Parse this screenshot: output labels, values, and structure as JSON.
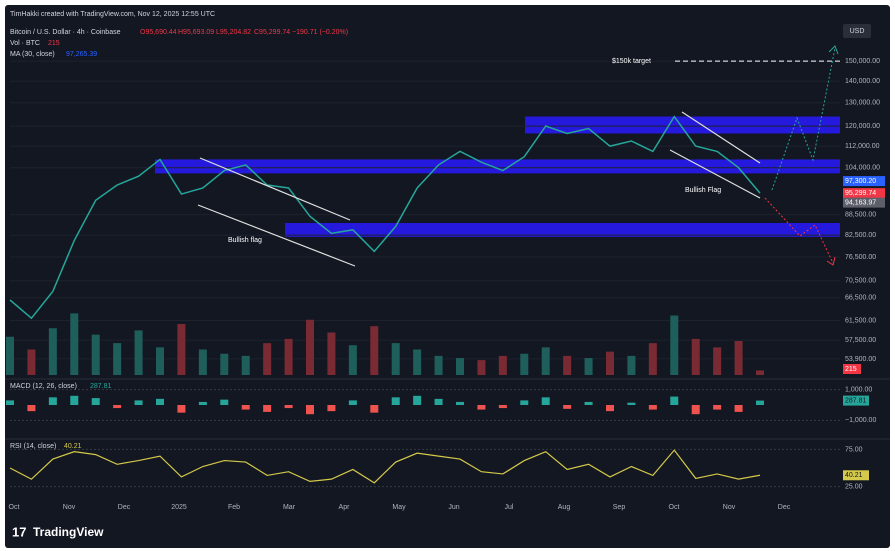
{
  "header": {
    "credit": "TimHakki created with TradingView.com, Nov 12, 2025 12:55 UTC",
    "currency_button": "USD",
    "brand": "TradingView"
  },
  "chart_data": {
    "type": "line",
    "title": "Bitcoin / U.S. Dollar · 4h · Coinbase",
    "ohlc_legend": [
      "O95,690.44",
      "H95,693.09",
      "L95,204.82",
      "C95,299.74",
      "−190.71 (−0.20%)"
    ],
    "ma_legend": "MA (30, close)",
    "ma_last": "97,265.39",
    "color": "#26a69a",
    "values": [
      66000,
      62000,
      68000,
      81000,
      93000,
      98000,
      101000,
      107000,
      95000,
      97000,
      103000,
      105000,
      98000,
      97000,
      88000,
      83000,
      84000,
      78000,
      85000,
      97000,
      105000,
      110000,
      106000,
      103000,
      108000,
      120000,
      117000,
      119000,
      112000,
      114000,
      110000,
      124000,
      112000,
      110000,
      104000,
      95300
    ],
    "xtick_labels": [
      "Oct",
      "Nov",
      "Dec",
      "2025",
      "Feb",
      "Mar",
      "Apr",
      "May",
      "Jun",
      "Jul",
      "Aug",
      "Sep",
      "Oct",
      "Nov",
      "Dec"
    ],
    "ylim": [
      51000,
      172800
    ],
    "log_scale": true,
    "grid": true,
    "yticks": [
      {
        "value": 150000,
        "label": "150,000.00"
      },
      {
        "value": 140000,
        "label": "140,000.00"
      },
      {
        "value": 130000,
        "label": "130,000.00"
      },
      {
        "value": 120000,
        "label": "120,000.00"
      },
      {
        "value": 112000,
        "label": "112,000.00"
      },
      {
        "value": 104000,
        "label": "104,000.00"
      },
      {
        "value": 88500,
        "label": "88,500.00"
      },
      {
        "value": 82500,
        "label": "82,500.00"
      },
      {
        "value": 76500,
        "label": "76,500.00"
      },
      {
        "value": 70500,
        "label": "70,500.00"
      },
      {
        "value": 66500,
        "label": "66,500.00"
      },
      {
        "value": 61500,
        "label": "61,500.00"
      },
      {
        "value": 57500,
        "label": "57,500.00"
      },
      {
        "value": 53900,
        "label": "53,900.00"
      }
    ],
    "price_badges": [
      {
        "value": 97300.2,
        "label": "97,300.20",
        "color": "#2962ff"
      },
      {
        "value": 95299.74,
        "label": "95,299.74",
        "color": "#f23645"
      },
      {
        "value": 94163.97,
        "label": "94,163.97",
        "color": "#5d606b"
      }
    ],
    "zones": [
      {
        "from": 117000,
        "to": 124000
      },
      {
        "from": 102000,
        "to": 107000
      },
      {
        "from": 82000,
        "to": 86000
      }
    ],
    "zone_color": "#2a1aff",
    "target_level": 150000,
    "target_label": "$150k target",
    "flag_labels": [
      "Bullish flag",
      "Bullish Flag"
    ]
  },
  "volume": {
    "legend": "Vol · BTC",
    "last": 215,
    "ylim": [
      0,
      4000
    ],
    "values": [
      1800,
      1200,
      2200,
      2900,
      1900,
      1500,
      2100,
      1300,
      2400,
      1200,
      1000,
      900,
      1500,
      1700,
      2600,
      2000,
      1400,
      2300,
      1500,
      1200,
      900,
      800,
      700,
      900,
      1000,
      1300,
      900,
      800,
      1100,
      900,
      1500,
      2800,
      1700,
      1300,
      1600,
      215
    ]
  },
  "macd": {
    "legend": "MACD (12, 26, close)",
    "last": {
      "value": 287.81,
      "label": "287.81"
    },
    "ylim": [
      -1500,
      1500
    ],
    "yticks": [
      {
        "value": 1000,
        "label": "1,000.00"
      },
      {
        "value": -1000,
        "label": "−1,000.00"
      }
    ],
    "values": [
      300,
      -400,
      500,
      600,
      450,
      -200,
      300,
      400,
      -500,
      200,
      350,
      -300,
      -450,
      -200,
      -600,
      -400,
      300,
      -500,
      500,
      600,
      400,
      200,
      -300,
      -200,
      300,
      500,
      -250,
      200,
      -400,
      150,
      -300,
      550,
      -600,
      -300,
      -450,
      287.81
    ]
  },
  "rsi": {
    "legend": "RSI (14, close)",
    "last": {
      "value": 40.21,
      "label": "40.21"
    },
    "ylim": [
      15,
      85
    ],
    "yticks": [
      {
        "value": 75,
        "label": "75.00"
      },
      {
        "value": 25,
        "label": "25.00"
      }
    ],
    "values": [
      50,
      35,
      62,
      72,
      68,
      55,
      60,
      66,
      38,
      52,
      60,
      58,
      40,
      45,
      32,
      35,
      48,
      30,
      58,
      70,
      66,
      62,
      45,
      42,
      60,
      72,
      48,
      55,
      38,
      52,
      40,
      74,
      36,
      42,
      35,
      40.21
    ]
  }
}
